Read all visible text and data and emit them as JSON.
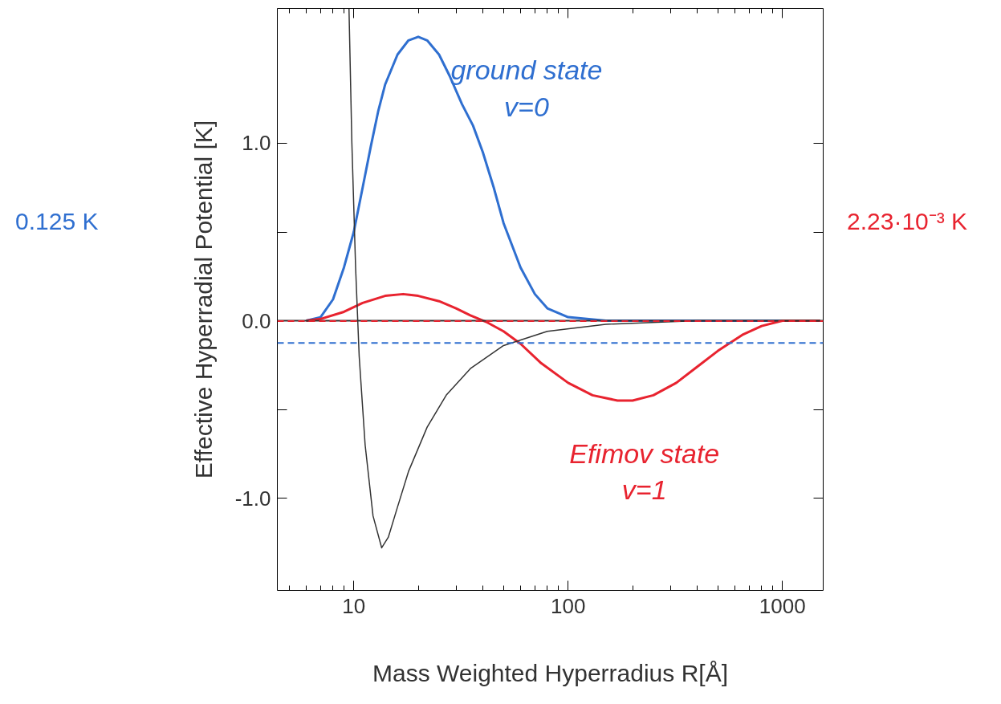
{
  "chart_data": {
    "type": "line",
    "xlabel": "Mass Weighted Hyperradius R[Å]",
    "ylabel": "Effective Hyperradial Potential [K]",
    "log": "x",
    "xlim": [
      4.4,
      1550
    ],
    "xticks": [
      10,
      100,
      1000
    ],
    "ylim": [
      -1.52,
      1.76
    ],
    "yticks": [
      {
        "value": 1.0,
        "label": "1.0"
      },
      {
        "value": 0.5,
        "label": null
      },
      {
        "value": 0.0,
        "label": "0.0"
      },
      {
        "value": -0.5,
        "label": null
      },
      {
        "value": -1.0,
        "label": "-1.0"
      }
    ],
    "grid": false,
    "marker": "none",
    "line_style": "solid",
    "series": [
      {
        "name": "ground state\nv=0",
        "color": "#2f6fd0",
        "x": [
          6,
          7,
          8,
          9,
          10,
          11,
          12,
          13,
          14,
          16,
          18,
          20,
          22,
          25,
          28,
          32,
          36,
          40,
          45,
          50,
          60,
          70,
          80,
          100,
          150,
          1500
        ],
        "values": [
          0,
          0.02,
          0.12,
          0.3,
          0.5,
          0.75,
          0.98,
          1.18,
          1.33,
          1.5,
          1.58,
          1.6,
          1.58,
          1.5,
          1.38,
          1.22,
          1.1,
          0.95,
          0.75,
          0.55,
          0.3,
          0.15,
          0.07,
          0.02,
          0,
          0
        ]
      },
      {
        "name": "Efimov state\nv=1",
        "color": "#e8232f",
        "x": [
          6,
          7,
          9,
          11,
          14,
          17,
          20,
          25,
          30,
          35,
          42,
          50,
          60,
          75,
          100,
          130,
          170,
          200,
          250,
          320,
          400,
          500,
          650,
          800,
          1000,
          1500
        ],
        "values": [
          0,
          0.01,
          0.05,
          0.1,
          0.14,
          0.15,
          0.14,
          0.11,
          0.07,
          0.03,
          -0.01,
          -0.06,
          -0.13,
          -0.24,
          -0.35,
          -0.42,
          -0.45,
          -0.45,
          -0.42,
          -0.35,
          -0.26,
          -0.17,
          -0.08,
          -0.03,
          0,
          0
        ]
      },
      {
        "color": "#333333",
        "x": [
          9.5,
          9.8,
          10.2,
          10.6,
          11.3,
          12.3,
          13.5,
          14.5,
          16,
          18,
          22,
          27,
          35,
          50,
          80,
          150,
          400,
          1500
        ],
        "values": [
          1.76,
          1.0,
          0.3,
          -0.2,
          -0.7,
          -1.1,
          -1.28,
          -1.22,
          -1.05,
          -0.85,
          -0.6,
          -0.42,
          -0.27,
          -0.14,
          -0.06,
          -0.02,
          0,
          0
        ]
      }
    ],
    "ref_lines": [
      {
        "axis": "y",
        "value": 0,
        "color": "#333333",
        "line_style": "solid"
      },
      {
        "axis": "y",
        "value": -0.125,
        "color": "#2f6fd0",
        "line_style": "dashed"
      },
      {
        "axis": "y",
        "value": -0.00223,
        "color": "#e8232f",
        "line_style": "dashed"
      }
    ],
    "annotations": [
      "0.125 K",
      "2.23·10⁻³ K"
    ]
  }
}
